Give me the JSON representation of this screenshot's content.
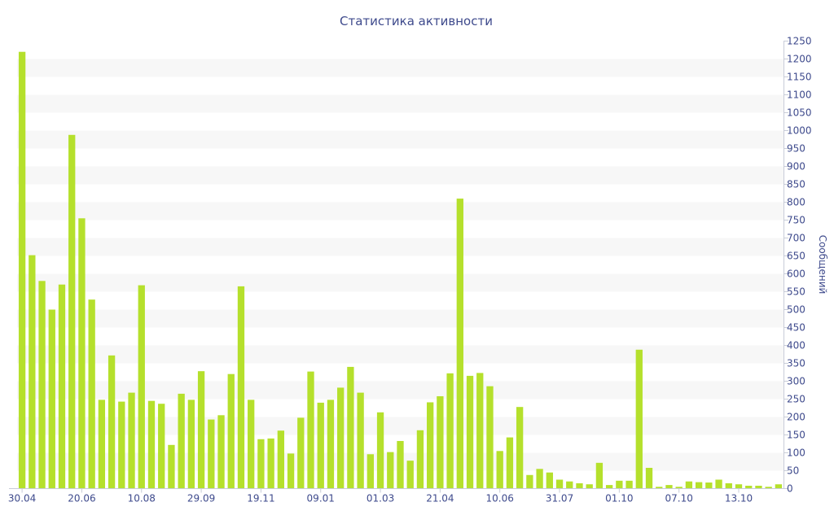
{
  "chart_data": {
    "type": "bar",
    "title": "Статистика активности",
    "xlabel": "",
    "ylabel": "Сообщений",
    "y_axis_side": "right",
    "ylim": [
      0,
      1250
    ],
    "y_ticks": [
      0,
      50,
      100,
      150,
      200,
      250,
      300,
      350,
      400,
      450,
      500,
      550,
      600,
      650,
      700,
      750,
      800,
      850,
      900,
      950,
      1000,
      1050,
      1100,
      1150,
      1200,
      1250
    ],
    "x_tick_labels": [
      {
        "index": 0,
        "label": "30.04"
      },
      {
        "index": 6,
        "label": "20.06"
      },
      {
        "index": 12,
        "label": "10.08"
      },
      {
        "index": 18,
        "label": "29.09"
      },
      {
        "index": 24,
        "label": "19.11"
      },
      {
        "index": 30,
        "label": "09.01"
      },
      {
        "index": 36,
        "label": "01.03"
      },
      {
        "index": 42,
        "label": "21.04"
      },
      {
        "index": 48,
        "label": "10.06"
      },
      {
        "index": 54,
        "label": "31.07"
      },
      {
        "index": 60,
        "label": "01.10"
      },
      {
        "index": 66,
        "label": "07.10"
      },
      {
        "index": 72,
        "label": "13.10"
      }
    ],
    "grid": "horizontal-bands",
    "bar_color": "#b5e02c",
    "band_color": "#f7f7f7",
    "text_color": "#3e4a8c",
    "values": [
      1220,
      652,
      580,
      500,
      570,
      988,
      755,
      528,
      248,
      372,
      243,
      268,
      568,
      245,
      237,
      122,
      265,
      248,
      328,
      193,
      205,
      320,
      565,
      248,
      138,
      140,
      162,
      98,
      198,
      327,
      240,
      248,
      282,
      340,
      268,
      96,
      213,
      102,
      133,
      78,
      163,
      241,
      258,
      322,
      810,
      315,
      323,
      286,
      105,
      143,
      228,
      38,
      55,
      45,
      25,
      20,
      15,
      12,
      72,
      10,
      22,
      22,
      388,
      58,
      5,
      10,
      5,
      20,
      18,
      17,
      25,
      15,
      12,
      8,
      8,
      5,
      12
    ]
  }
}
